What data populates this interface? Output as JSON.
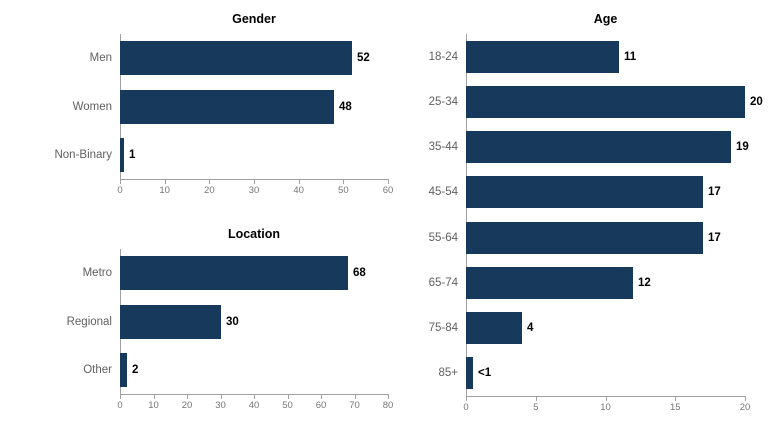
{
  "colors": {
    "bar_fill": "#17395C",
    "axis_line": "#a0a0a0",
    "tick_label": "#757575",
    "category_label": "#5f5f5f",
    "value_label": "#000000",
    "title": "#000000",
    "background": "#ffffff"
  },
  "chart_data": [
    {
      "id": "gender",
      "type": "bar",
      "orientation": "horizontal",
      "title": "Gender",
      "categories": [
        "Men",
        "Women",
        "Non-Binary"
      ],
      "values": [
        52,
        48,
        1
      ],
      "value_labels": [
        "52",
        "48",
        "1"
      ],
      "xlim": [
        0,
        60
      ],
      "xticks": [
        0,
        10,
        20,
        30,
        40,
        50,
        60
      ],
      "grid": false,
      "legend": false
    },
    {
      "id": "location",
      "type": "bar",
      "orientation": "horizontal",
      "title": "Location",
      "categories": [
        "Metro",
        "Regional",
        "Other"
      ],
      "values": [
        68,
        30,
        2
      ],
      "value_labels": [
        "68",
        "30",
        "2"
      ],
      "xlim": [
        0,
        80
      ],
      "xticks": [
        0,
        10,
        20,
        30,
        40,
        50,
        60,
        70,
        80
      ],
      "grid": false,
      "legend": false
    },
    {
      "id": "age",
      "type": "bar",
      "orientation": "horizontal",
      "title": "Age",
      "categories": [
        "18-24",
        "25-34",
        "35-44",
        "45-54",
        "55-64",
        "65-74",
        "75-84",
        "85+"
      ],
      "values": [
        11,
        20,
        19,
        17,
        17,
        12,
        4,
        0.5
      ],
      "value_labels": [
        "11",
        "20",
        "19",
        "17",
        "17",
        "12",
        "4",
        "<1"
      ],
      "xlim": [
        0,
        20
      ],
      "xticks": [
        0,
        5,
        10,
        15,
        20
      ],
      "grid": false,
      "legend": false
    }
  ]
}
